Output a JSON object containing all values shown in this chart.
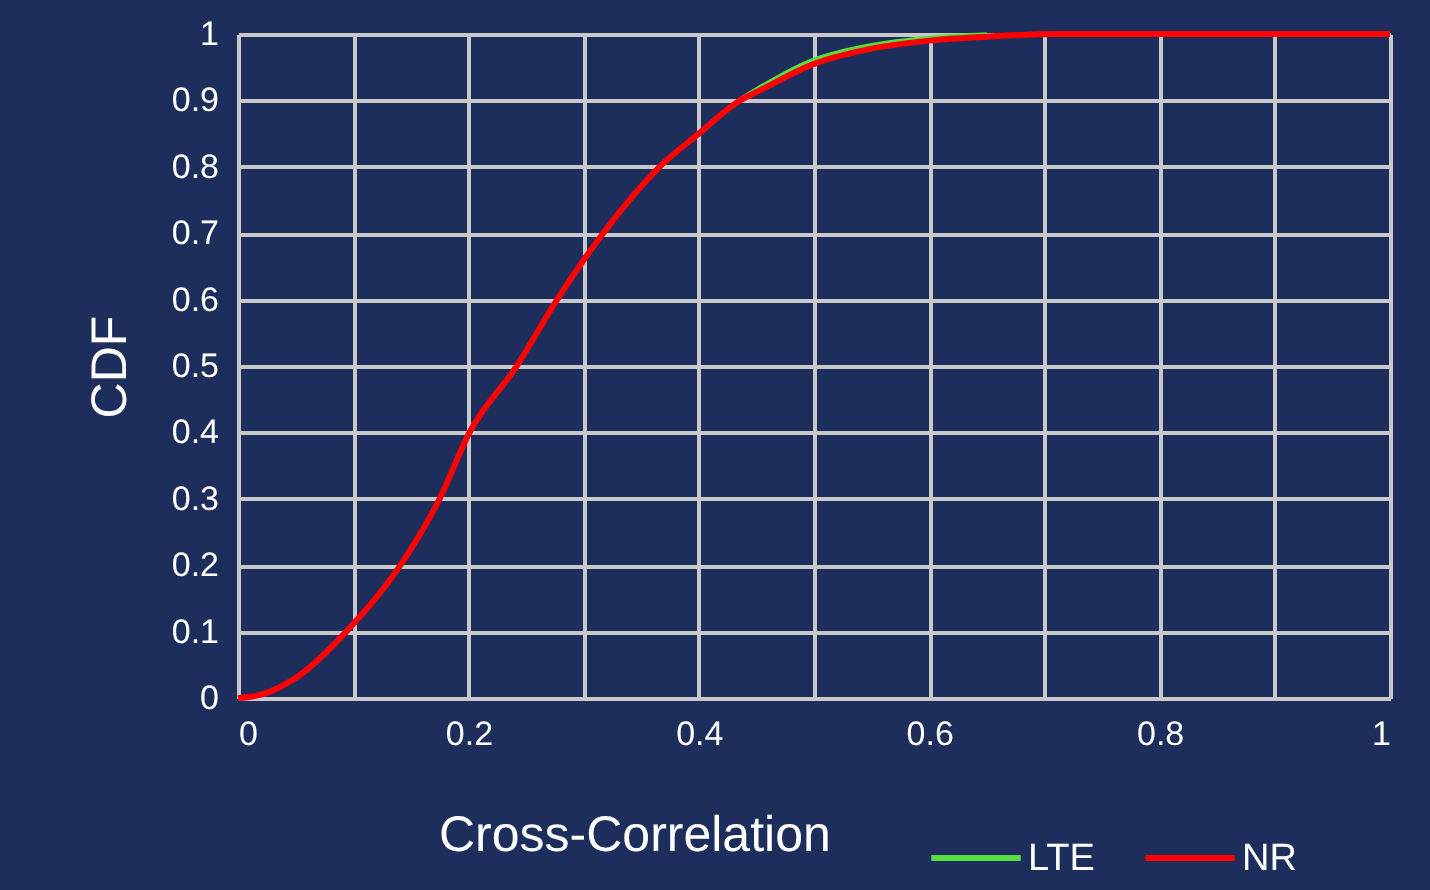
{
  "chart_data": {
    "type": "line",
    "xlabel": "Cross-Correlation",
    "ylabel": "CDF",
    "x": [
      0,
      0.02,
      0.05,
      0.094,
      0.141,
      0.175,
      0.201,
      0.242,
      0.277,
      0.317,
      0.366,
      0.4,
      0.436,
      0.453,
      0.5,
      0.55,
      0.6,
      0.65,
      0.71,
      0.8,
      0.9,
      1
    ],
    "series": [
      {
        "name": "LTE",
        "color": "#55e040",
        "values": [
          null,
          null,
          null,
          null,
          null,
          null,
          null,
          null,
          null,
          null,
          null,
          null,
          0.9,
          0.918,
          0.96,
          0.982,
          0.993,
          0.998,
          null,
          null,
          null,
          null
        ]
      },
      {
        "name": "NR",
        "color": "#ff0000",
        "values": [
          0,
          0.005,
          0.03,
          0.1,
          0.2,
          0.3,
          0.4,
          0.5,
          0.6,
          0.7,
          0.8,
          0.85,
          0.9,
          0.915,
          0.955,
          0.978,
          0.99,
          0.996,
          1,
          1,
          1,
          1
        ]
      }
    ],
    "xlim": [
      0,
      1
    ],
    "ylim": [
      0,
      1
    ],
    "xticks": [
      0,
      {
        "value": 0.1,
        "label": null
      },
      0.2,
      {
        "value": 0.3,
        "label": null
      },
      0.4,
      {
        "value": 0.5,
        "label": null
      },
      0.6,
      {
        "value": 0.7,
        "label": null
      },
      0.8,
      {
        "value": 0.9,
        "label": null
      },
      1
    ],
    "yticks": [
      0,
      0.1,
      0.2,
      0.3,
      0.4,
      0.5,
      0.6,
      0.7,
      0.8,
      0.9,
      1
    ],
    "grid": true,
    "legend": "bottom right",
    "marker": "none",
    "line_style": "solid"
  }
}
